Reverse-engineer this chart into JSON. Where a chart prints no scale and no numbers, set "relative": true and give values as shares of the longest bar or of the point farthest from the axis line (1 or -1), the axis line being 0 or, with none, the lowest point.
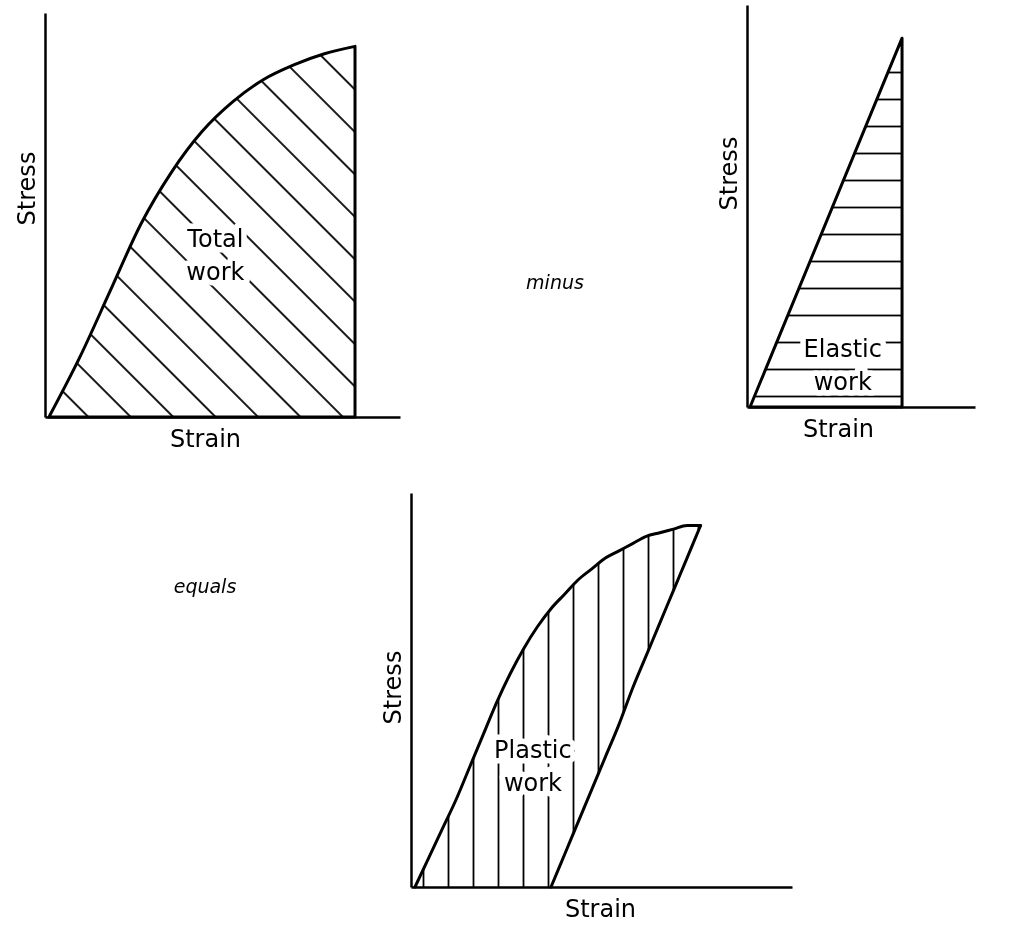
{
  "chart_data": [
    {
      "type": "area",
      "relative": true,
      "xlabel": "Strain",
      "ylabel": "Stress",
      "categories": [
        null,
        null,
        null,
        null,
        null,
        null,
        null,
        null,
        null,
        null,
        null
      ],
      "values": [
        0,
        0.16,
        0.34,
        0.52,
        0.66,
        0.77,
        0.85,
        0.91,
        0.95,
        0.98,
        1
      ],
      "color": "#000000",
      "annotations": [
        "Total work"
      ]
    },
    {
      "type": "other",
      "annotations": [
        "minus"
      ]
    },
    {
      "type": "area",
      "relative": true,
      "xlabel": "Strain",
      "ylabel": "Stress",
      "categories": [
        null,
        null
      ],
      "values": [
        0,
        1
      ],
      "color": "#000000",
      "annotations": [
        "Elastic work"
      ]
    },
    {
      "type": "other",
      "annotations": [
        "equals"
      ]
    },
    {
      "type": "line",
      "relative": true,
      "xlabel": "Strain",
      "ylabel": "Stress",
      "categories": [
        null,
        null,
        null,
        null,
        null,
        null,
        null,
        null,
        null,
        null,
        null,
        null,
        null,
        null,
        null,
        null,
        null,
        null,
        null,
        null,
        null,
        null
      ],
      "series": [
        {
          "color": "#000000",
          "values": [
            0,
            0.08,
            0.16,
            0.24,
            0.33,
            0.42,
            0.51,
            0.59,
            0.66,
            0.72,
            0.77,
            0.81,
            0.85,
            0.88,
            0.91,
            0.93,
            0.95,
            0.97,
            0.98,
            0.99,
            1,
            1
          ],
          "lower": [
            0,
            0,
            0,
            0,
            0,
            0,
            0,
            0,
            0,
            0,
            0,
            0.09,
            0.18,
            0.27,
            0.36,
            0.45,
            0.55,
            0.64,
            0.73,
            0.82,
            0.91,
            1
          ],
          "upper": [
            0,
            0.08,
            0.16,
            0.24,
            0.33,
            0.42,
            0.51,
            0.59,
            0.66,
            0.72,
            0.77,
            0.81,
            0.85,
            0.88,
            0.91,
            0.93,
            0.95,
            0.97,
            0.98,
            0.99,
            1,
            1
          ]
        },
        {
          "color": "#000000",
          "values": [
            null,
            null,
            null,
            null,
            null,
            null,
            null,
            null,
            null,
            null,
            0,
            0.09,
            0.18,
            0.27,
            0.36,
            0.45,
            0.55,
            0.64,
            0.73,
            0.82,
            0.91,
            1
          ]
        }
      ],
      "annotations": [
        "Plastic work"
      ]
    }
  ]
}
